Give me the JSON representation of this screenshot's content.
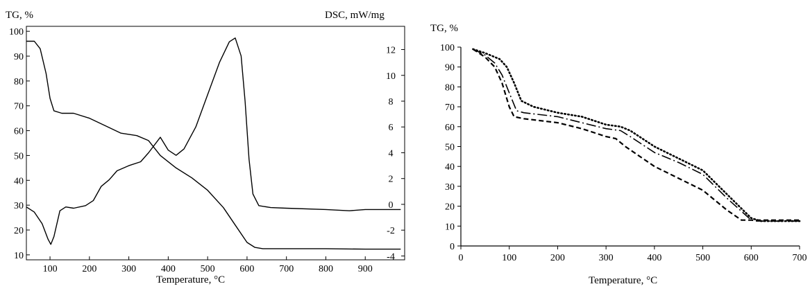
{
  "chart_data": [
    {
      "type": "line",
      "ylabel_left": "TG, %",
      "ylabel_right": "DSC, mW/mg",
      "xlabel": "Temperature, °C",
      "xlim": [
        40,
        1000
      ],
      "xticks": [
        100,
        200,
        300,
        400,
        500,
        600,
        700,
        800,
        900
      ],
      "ylim_left": [
        8,
        102
      ],
      "yticks_left": [
        10,
        20,
        30,
        40,
        50,
        60,
        70,
        80,
        90,
        100
      ],
      "ylim_right": [
        -4.3,
        13.8
      ],
      "yticks_right": [
        -4,
        -2,
        0,
        2,
        4,
        6,
        8,
        10,
        12
      ],
      "grid": false,
      "series": [
        {
          "axis": "left",
          "x": [
            40,
            60,
            75,
            90,
            100,
            110,
            130,
            160,
            200,
            240,
            280,
            320,
            350,
            380,
            420,
            460,
            500,
            540,
            570,
            600,
            620,
            640,
            700,
            800,
            900,
            990
          ],
          "y": [
            96,
            96,
            93,
            83,
            73,
            68,
            67,
            67,
            65,
            62,
            59,
            58,
            56,
            50,
            45,
            41,
            36,
            29,
            22,
            15,
            13,
            12.5,
            12.5,
            12.5,
            12.3,
            12.3
          ]
        },
        {
          "axis": "right",
          "x": [
            40,
            60,
            80,
            95,
            102,
            110,
            125,
            140,
            160,
            190,
            210,
            230,
            250,
            270,
            300,
            330,
            350,
            380,
            400,
            420,
            440,
            470,
            500,
            530,
            555,
            570,
            585,
            595,
            605,
            615,
            630,
            660,
            700,
            800,
            860,
            900,
            990
          ],
          "y": [
            -0.2,
            -0.6,
            -1.5,
            -2.7,
            -3.1,
            -2.5,
            -0.5,
            -0.2,
            -0.3,
            -0.1,
            0.3,
            1.4,
            1.9,
            2.6,
            3.0,
            3.3,
            4.0,
            5.2,
            4.2,
            3.8,
            4.3,
            6.0,
            8.5,
            11.0,
            12.6,
            12.9,
            11.5,
            8.0,
            3.5,
            0.8,
            -0.1,
            -0.25,
            -0.3,
            -0.4,
            -0.5,
            -0.4,
            -0.4
          ]
        }
      ]
    },
    {
      "type": "line",
      "ylabel": "TG, %",
      "xlabel": "Temperature, °C",
      "xlim": [
        0,
        700
      ],
      "xticks": [
        0,
        100,
        200,
        300,
        400,
        500,
        600,
        700
      ],
      "ylim": [
        0,
        100
      ],
      "yticks": [
        0,
        10,
        20,
        30,
        40,
        50,
        60,
        70,
        80,
        90,
        100
      ],
      "grid": false,
      "series": [
        {
          "style": "dotted",
          "x": [
            25,
            50,
            80,
            95,
            110,
            125,
            150,
            200,
            250,
            300,
            330,
            350,
            400,
            450,
            500,
            550,
            600,
            620,
            700
          ],
          "y": [
            99,
            97,
            94,
            90,
            82,
            73,
            70,
            67,
            65,
            61,
            60,
            58,
            50,
            44,
            38,
            26,
            14,
            12.5,
            12.5
          ]
        },
        {
          "style": "dash-dot",
          "x": [
            25,
            50,
            70,
            85,
            100,
            115,
            130,
            200,
            250,
            300,
            330,
            350,
            400,
            450,
            500,
            550,
            600,
            610,
            700
          ],
          "y": [
            99,
            96,
            92,
            86,
            77,
            68,
            67,
            65,
            62,
            59,
            58,
            55,
            47,
            42,
            36,
            24,
            13,
            12.5,
            12.5
          ]
        },
        {
          "style": "dashed",
          "x": [
            25,
            50,
            70,
            85,
            100,
            110,
            130,
            200,
            250,
            300,
            320,
            340,
            400,
            450,
            500,
            550,
            580,
            600,
            700
          ],
          "y": [
            99,
            95,
            90,
            82,
            70,
            65,
            64,
            62,
            59,
            55,
            54,
            50,
            40,
            34,
            28,
            18,
            13,
            13,
            13
          ]
        }
      ]
    }
  ]
}
